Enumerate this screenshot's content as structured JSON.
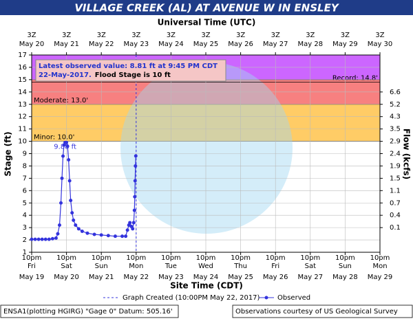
{
  "chart_data": {
    "type": "line",
    "title": "VILLAGE CREEK (AL) AT AVENUE W IN ENSLEY",
    "top_axis_label": "Universal Time (UTC)",
    "x_label": "Site Time (CDT)",
    "y_label": "Stage (ft)",
    "y2_label": "Flow (kcfs)",
    "xlim": [
      0,
      10
    ],
    "xticks": [
      {
        "value": 0,
        "label": "10pm"
      },
      {
        "value": 1,
        "label": "10pm"
      },
      {
        "value": 2,
        "label": "10pm"
      },
      {
        "value": 3,
        "label": "10pm"
      },
      {
        "value": 4,
        "label": "10pm"
      },
      {
        "value": 5,
        "label": "10pm"
      },
      {
        "value": 6,
        "label": "10pm"
      },
      {
        "value": 7,
        "label": "10pm"
      },
      {
        "value": 8,
        "label": "10pm"
      },
      {
        "value": 9,
        "label": "10pm"
      },
      {
        "value": 10,
        "label": "10pm"
      }
    ],
    "x_weekdays": [
      "Fri",
      "Sat",
      "Sun",
      "Mon",
      "Tue",
      "Wed",
      "Thu",
      "Fri",
      "Sat",
      "Sun",
      "Mon"
    ],
    "x_dates": [
      "May 19",
      "May 20",
      "May 21",
      "May 22",
      "May 23",
      "May 24",
      "May 25",
      "May 26",
      "May 27",
      "May 28",
      "May 29"
    ],
    "x2ticks": [
      {
        "value": 0,
        "label": "3Z"
      },
      {
        "value": 1,
        "label": "3Z"
      },
      {
        "value": 2,
        "label": "3Z"
      },
      {
        "value": 3,
        "label": "3Z"
      },
      {
        "value": 4,
        "label": "3Z"
      },
      {
        "value": 5,
        "label": "3Z"
      },
      {
        "value": 6,
        "label": "3Z"
      },
      {
        "value": 7,
        "label": "3Z"
      },
      {
        "value": 8,
        "label": "3Z"
      },
      {
        "value": 9,
        "label": "3Z"
      },
      {
        "value": 10,
        "label": "3Z"
      }
    ],
    "x2_dates": [
      "May 20",
      "May 21",
      "May 22",
      "May 23",
      "May 24",
      "May 25",
      "May 26",
      "May 27",
      "May 28",
      "May 29",
      "May 30"
    ],
    "ylim": [
      1,
      17
    ],
    "yticks": [
      1,
      2,
      3,
      4,
      5,
      6,
      7,
      8,
      9,
      10,
      11,
      12,
      13,
      14,
      15,
      16,
      17
    ],
    "y2ticks": [
      0.1,
      0.4,
      0.7,
      1.1,
      1.5,
      1.9,
      2.4,
      2.9,
      3.5,
      4.3,
      5.2,
      6.6
    ],
    "y2_tick_stages": [
      3,
      4,
      5,
      6,
      7,
      8,
      9,
      10,
      11,
      12,
      13,
      14
    ],
    "grid": true,
    "flood_categories": [
      {
        "label": "Minor: 10.0'",
        "from": 10,
        "to": 13,
        "color": "#ffcc66"
      },
      {
        "label": "Moderate: 13.0'",
        "from": 13,
        "to": 15,
        "color": "#f78080"
      },
      {
        "from": 15,
        "to": 17,
        "color": "#cc66ff"
      }
    ],
    "record": {
      "label": "Record: 14.8'",
      "value": 14.8
    },
    "crest_label": {
      "label": "9.88 ft",
      "x": 0.96,
      "value": 9.88
    },
    "annotation": {
      "line1": "Latest observed value: 8.81 ft at 9:45 PM CDT",
      "line2a": "22-May-2017.",
      "line2b": "Flood Stage is 10 ft"
    },
    "graph_created": {
      "label": "Graph Created (10:00PM May 22, 2017)",
      "x": 3
    },
    "series": [
      {
        "name": "Observed",
        "color": "#3333dd",
        "x": [
          0,
          0.1,
          0.2,
          0.3,
          0.4,
          0.5,
          0.6,
          0.7,
          0.75,
          0.8,
          0.84,
          0.87,
          0.9,
          0.93,
          0.96,
          1.0,
          1.03,
          1.06,
          1.09,
          1.12,
          1.16,
          1.2,
          1.26,
          1.35,
          1.45,
          1.6,
          1.8,
          2.0,
          2.2,
          2.4,
          2.6,
          2.7,
          2.75,
          2.79,
          2.82,
          2.86,
          2.9,
          2.93,
          2.95,
          2.96,
          2.97,
          2.98,
          2.99
        ],
        "values": [
          2.05,
          2.05,
          2.05,
          2.05,
          2.05,
          2.05,
          2.1,
          2.15,
          2.5,
          3.2,
          5.0,
          7.0,
          8.8,
          9.7,
          9.9,
          9.9,
          9.6,
          8.5,
          6.8,
          5.2,
          4.2,
          3.6,
          3.2,
          2.9,
          2.7,
          2.55,
          2.45,
          2.4,
          2.35,
          2.3,
          2.3,
          2.3,
          2.8,
          3.2,
          3.4,
          3.1,
          2.9,
          3.4,
          4.4,
          5.5,
          6.8,
          8.0,
          8.81
        ]
      }
    ],
    "footer_left": "ENSA1(plotting HGIRG) \"Gage 0\" Datum: 505.16'",
    "footer_right": "Observations courtesy of US Geological Survey"
  }
}
